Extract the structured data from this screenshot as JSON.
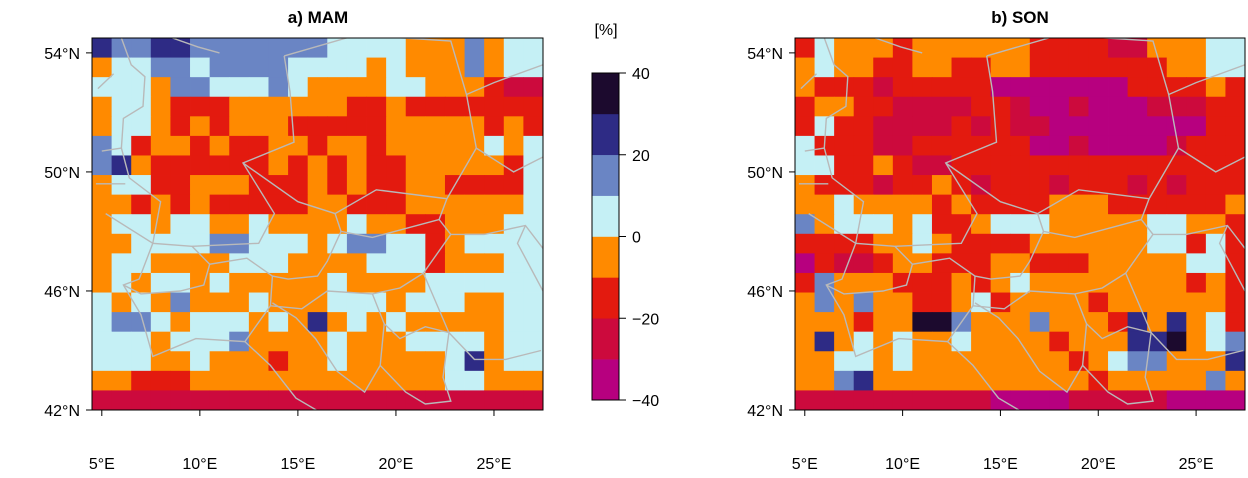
{
  "chart_data": [
    {
      "type": "heatmap",
      "title": "a) MAM",
      "x_ticks": [
        "5°E",
        "10°E",
        "15°E",
        "20°E",
        "25°E"
      ],
      "y_ticks": [
        "54°N",
        "50°N",
        "46°N",
        "42°N"
      ],
      "xlim": [
        4.5,
        27.5
      ],
      "ylim": [
        42.0,
        54.5
      ],
      "x_tick_values": [
        5,
        10,
        15,
        20,
        25
      ],
      "y_tick_values": [
        54,
        50,
        46,
        42
      ],
      "grid_cols": 23,
      "grid_rows": 19,
      "note": "class codes per cell: 0=[-40,-30] … 7=[30,40]",
      "cells": [
        "65566555555544443335344",
        "34455455554444343335344",
        "44435544454333344333211",
        "34432223333332232222222",
        "34432323332222233333232",
        "54233232233233233333434",
        "56322222232323223333324",
        "34422333222323223322224",
        "33232322222332223333334",
        "34434433433334332233344",
        "33444455444345544234444",
        "34433334443333444233344",
        "34344343333343333444444",
        "43435333433344434443344",
        "45543444343634343333344",
        "44434445333343334444344",
        "44433433323343333346344",
        "33222333333333333344333",
        "11111111111111111111111"
      ]
    },
    {
      "type": "heatmap",
      "title": "b) SON",
      "x_ticks": [
        "5°E",
        "10°E",
        "15°E",
        "20°E",
        "25°E"
      ],
      "y_ticks": [
        "54°N",
        "50°N",
        "46°N",
        "42°N"
      ],
      "xlim": [
        4.5,
        27.5
      ],
      "ylim": [
        42.0,
        54.5
      ],
      "x_tick_values": [
        5,
        10,
        15,
        20,
        25
      ],
      "y_tick_values": [
        54,
        50,
        46,
        42
      ],
      "grid_cols": 23,
      "grid_rows": 19,
      "cells": [
        "24333233333322221133344",
        "34332233223322222223344",
        "32221222220000000222232",
        "23322111122100100011122",
        "24221111212110000000022",
        "42221122222200100001222",
        "44223211222222222222222",
        "32221223212221222121222",
        "33433332322223332222223",
        "53444342234443333344332",
        "22223343222233333344242",
        "02112332223322233333442",
        "25333222323433333333232",
        "35353322342333323333332",
        "33323377533353332636342",
        "36343433433332333667345",
        "33443433333333234553336",
        "33563333333333323333353",
        "11111111110000111110000"
      ]
    },
    {
      "type": "colorbar",
      "unit": "[%]",
      "ticks": [
        "40",
        "20",
        "0",
        "−20",
        "−40"
      ],
      "tick_values": [
        40,
        20,
        0,
        -20,
        -40
      ],
      "range": [
        -40,
        40
      ],
      "class_colors": [
        "#b7007f",
        "#cc0a3d",
        "#e31a0f",
        "#ff8a00",
        "#c5f0f5",
        "#6a85c4",
        "#2e2b85",
        "#1c0a2e"
      ]
    }
  ]
}
